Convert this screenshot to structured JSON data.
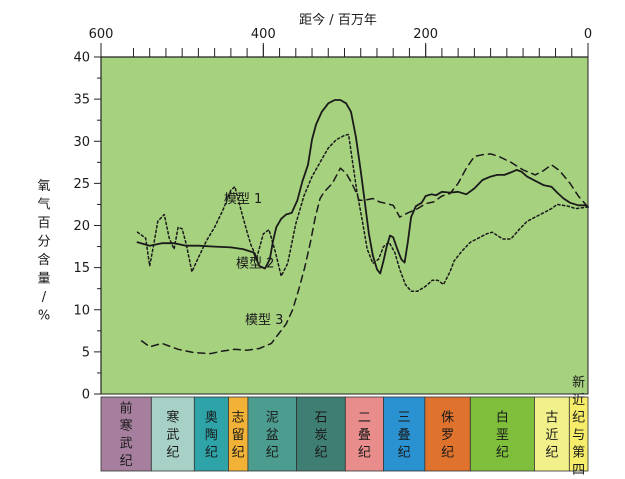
{
  "chart_data": {
    "type": "line",
    "title": "",
    "xlabel": "距今 / 百万年",
    "ylabel": "氧气百分含量 / %",
    "xlim": [
      600,
      0
    ],
    "ylim": [
      0,
      40
    ],
    "x_ticks_major": [
      "600",
      "400",
      "200",
      "0"
    ],
    "y_ticks": [
      "0",
      "5",
      "10",
      "15",
      "20",
      "25",
      "30",
      "35",
      "40"
    ],
    "grid": false,
    "background": "#a6d17f",
    "series": [
      {
        "name": "模型 1",
        "style": "dotted",
        "points": [
          [
            555,
            19.2
          ],
          [
            545,
            18.5
          ],
          [
            540,
            15.2
          ],
          [
            535,
            17.8
          ],
          [
            530,
            20.5
          ],
          [
            522,
            21.3
          ],
          [
            516,
            18.5
          ],
          [
            510,
            17.2
          ],
          [
            505,
            19.8
          ],
          [
            500,
            19.6
          ],
          [
            495,
            17.8
          ],
          [
            488,
            14.5
          ],
          [
            480,
            16.2
          ],
          [
            470,
            18.2
          ],
          [
            460,
            19.8
          ],
          [
            450,
            21.8
          ],
          [
            440,
            24.2
          ],
          [
            435,
            24.6
          ],
          [
            428,
            22.0
          ],
          [
            420,
            19.2
          ],
          [
            415,
            17.6
          ],
          [
            408,
            16.2
          ],
          [
            400,
            19.0
          ],
          [
            393,
            19.5
          ],
          [
            385,
            16.8
          ],
          [
            378,
            14.0
          ],
          [
            370,
            15.5
          ],
          [
            360,
            20.2
          ],
          [
            350,
            23.5
          ],
          [
            340,
            25.8
          ],
          [
            330,
            27.5
          ],
          [
            320,
            29.2
          ],
          [
            310,
            30.2
          ],
          [
            300,
            30.7
          ],
          [
            295,
            30.8
          ],
          [
            290,
            27.5
          ],
          [
            285,
            24.2
          ],
          [
            278,
            20.5
          ],
          [
            272,
            17.2
          ],
          [
            265,
            15.5
          ],
          [
            258,
            16.0
          ],
          [
            252,
            17.5
          ],
          [
            245,
            18.0
          ],
          [
            238,
            16.8
          ],
          [
            232,
            14.8
          ],
          [
            225,
            13.0
          ],
          [
            218,
            12.2
          ],
          [
            210,
            12.2
          ],
          [
            200,
            12.8
          ],
          [
            192,
            13.5
          ],
          [
            185,
            13.5
          ],
          [
            178,
            13.0
          ],
          [
            170,
            14.5
          ],
          [
            165,
            15.8
          ],
          [
            155,
            17.0
          ],
          [
            145,
            18.0
          ],
          [
            135,
            18.5
          ],
          [
            125,
            19.0
          ],
          [
            118,
            19.2
          ],
          [
            105,
            18.4
          ],
          [
            95,
            18.4
          ],
          [
            85,
            19.5
          ],
          [
            75,
            20.5
          ],
          [
            65,
            21.0
          ],
          [
            55,
            21.5
          ],
          [
            45,
            22.0
          ],
          [
            38,
            22.5
          ],
          [
            25,
            22.3
          ],
          [
            15,
            22.0
          ],
          [
            0,
            22.2
          ]
        ]
      },
      {
        "name": "模型 2",
        "style": "solid",
        "points": [
          [
            555,
            18.0
          ],
          [
            540,
            17.6
          ],
          [
            525,
            17.9
          ],
          [
            510,
            17.9
          ],
          [
            495,
            17.6
          ],
          [
            480,
            17.6
          ],
          [
            460,
            17.5
          ],
          [
            440,
            17.4
          ],
          [
            425,
            17.2
          ],
          [
            412,
            16.8
          ],
          [
            405,
            15.2
          ],
          [
            398,
            14.9
          ],
          [
            392,
            16.0
          ],
          [
            388,
            18.2
          ],
          [
            384,
            19.8
          ],
          [
            378,
            20.8
          ],
          [
            372,
            21.3
          ],
          [
            365,
            21.5
          ],
          [
            358,
            23.0
          ],
          [
            352,
            25.2
          ],
          [
            345,
            27.2
          ],
          [
            340,
            30.2
          ],
          [
            335,
            32.0
          ],
          [
            328,
            33.5
          ],
          [
            320,
            34.5
          ],
          [
            312,
            34.9
          ],
          [
            305,
            34.9
          ],
          [
            298,
            34.5
          ],
          [
            292,
            33.5
          ],
          [
            286,
            30.5
          ],
          [
            280,
            26.5
          ],
          [
            275,
            22.8
          ],
          [
            270,
            19.0
          ],
          [
            265,
            16.4
          ],
          [
            260,
            14.8
          ],
          [
            256,
            14.3
          ],
          [
            252,
            15.8
          ],
          [
            248,
            17.5
          ],
          [
            244,
            18.8
          ],
          [
            240,
            18.6
          ],
          [
            235,
            17.2
          ],
          [
            230,
            16.0
          ],
          [
            226,
            15.6
          ],
          [
            222,
            18.0
          ],
          [
            218,
            21.0
          ],
          [
            212,
            22.3
          ],
          [
            205,
            22.7
          ],
          [
            200,
            23.5
          ],
          [
            193,
            23.7
          ],
          [
            187,
            23.6
          ],
          [
            180,
            24.0
          ],
          [
            170,
            23.9
          ],
          [
            160,
            24.0
          ],
          [
            150,
            23.7
          ],
          [
            140,
            24.4
          ],
          [
            130,
            25.4
          ],
          [
            120,
            25.8
          ],
          [
            112,
            26.0
          ],
          [
            103,
            26.0
          ],
          [
            95,
            26.3
          ],
          [
            88,
            26.6
          ],
          [
            82,
            26.4
          ],
          [
            75,
            25.8
          ],
          [
            65,
            25.3
          ],
          [
            55,
            24.8
          ],
          [
            45,
            24.6
          ],
          [
            38,
            23.9
          ],
          [
            30,
            23.2
          ],
          [
            22,
            22.7
          ],
          [
            12,
            22.4
          ],
          [
            4,
            22.4
          ],
          [
            0,
            22.2
          ]
        ]
      },
      {
        "name": "模型 3",
        "style": "dashed",
        "points": [
          [
            550,
            6.3
          ],
          [
            540,
            5.6
          ],
          [
            525,
            6.0
          ],
          [
            505,
            5.3
          ],
          [
            485,
            4.9
          ],
          [
            465,
            4.8
          ],
          [
            450,
            5.1
          ],
          [
            435,
            5.3
          ],
          [
            420,
            5.2
          ],
          [
            405,
            5.4
          ],
          [
            390,
            6.0
          ],
          [
            380,
            7.3
          ],
          [
            372,
            8.3
          ],
          [
            364,
            10.0
          ],
          [
            356,
            12.5
          ],
          [
            349,
            15.0
          ],
          [
            342,
            18.0
          ],
          [
            336,
            21.0
          ],
          [
            330,
            23.2
          ],
          [
            325,
            24.0
          ],
          [
            320,
            24.5
          ],
          [
            315,
            25.0
          ],
          [
            305,
            26.8
          ],
          [
            298,
            26.2
          ],
          [
            292,
            25.2
          ],
          [
            287,
            24.2
          ],
          [
            282,
            23.0
          ],
          [
            275,
            23.0
          ],
          [
            265,
            23.2
          ],
          [
            257,
            22.8
          ],
          [
            248,
            22.6
          ],
          [
            240,
            22.4
          ],
          [
            232,
            21.0
          ],
          [
            222,
            21.5
          ],
          [
            210,
            22.0
          ],
          [
            200,
            22.6
          ],
          [
            190,
            22.8
          ],
          [
            180,
            23.5
          ],
          [
            170,
            23.8
          ],
          [
            160,
            25.0
          ],
          [
            150,
            26.8
          ],
          [
            140,
            28.2
          ],
          [
            130,
            28.4
          ],
          [
            120,
            28.5
          ],
          [
            110,
            28.2
          ],
          [
            95,
            27.5
          ],
          [
            80,
            26.6
          ],
          [
            65,
            26.0
          ],
          [
            55,
            26.5
          ],
          [
            45,
            27.2
          ],
          [
            35,
            26.5
          ],
          [
            22,
            25.0
          ],
          [
            12,
            23.5
          ],
          [
            0,
            22.2
          ]
        ]
      }
    ],
    "series_labels": [
      {
        "text": "模型 1",
        "x": 425,
        "y": 22.7
      },
      {
        "text": "模型 2",
        "x": 410,
        "y": 15.0
      },
      {
        "text": "模型 3",
        "x": 399,
        "y": 8.3
      }
    ],
    "periods": [
      {
        "name": "前寒武纪",
        "start": 600,
        "end": 538,
        "color": "#a57f9d"
      },
      {
        "name": "寒武纪",
        "start": 538,
        "end": 485,
        "color": "#a7d1c7"
      },
      {
        "name": "奥陶纪",
        "start": 485,
        "end": 443,
        "color": "#2ea4a8"
      },
      {
        "name": "志留纪",
        "start": 443,
        "end": 419,
        "color": "#f1b237"
      },
      {
        "name": "泥盆纪",
        "start": 419,
        "end": 359,
        "color": "#4d9c90"
      },
      {
        "name": "石炭纪",
        "start": 359,
        "end": 299,
        "color": "#3f7e72"
      },
      {
        "name": "二叠纪",
        "start": 299,
        "end": 252,
        "color": "#e98d8c"
      },
      {
        "name": "三叠纪",
        "start": 252,
        "end": 201,
        "color": "#2a92d0"
      },
      {
        "name": "侏罗纪",
        "start": 201,
        "end": 145,
        "color": "#df732e"
      },
      {
        "name": "白垩纪",
        "start": 145,
        "end": 66,
        "color": "#7fbf3c"
      },
      {
        "name": "古近纪",
        "start": 66,
        "end": 23,
        "color": "#f2f08b"
      },
      {
        "name": "新近纪与第四纪",
        "start": 23,
        "end": 0,
        "color": "#f6ed6a"
      }
    ]
  }
}
